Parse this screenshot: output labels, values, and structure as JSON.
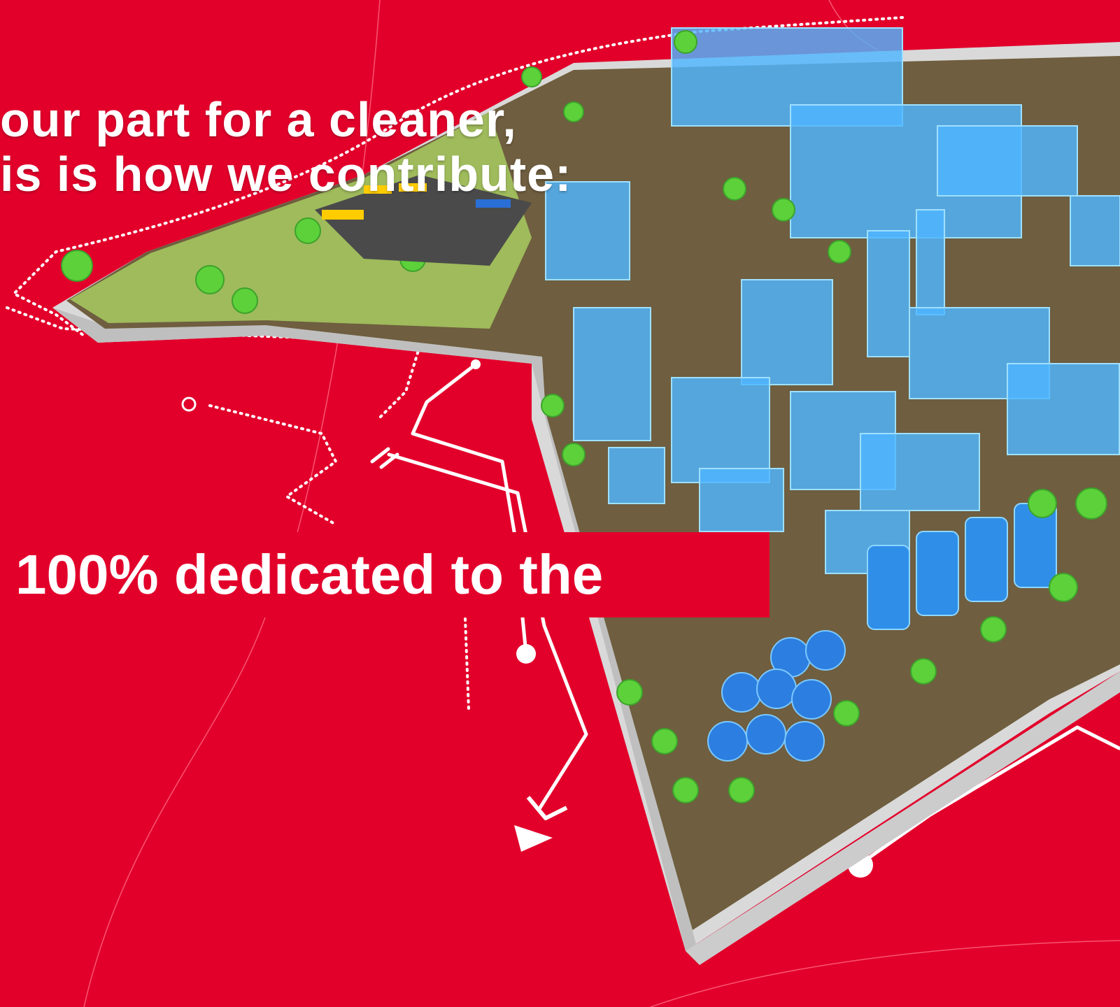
{
  "headline": {
    "line1": "our part for a cleaner,",
    "line2": "is is how we contribute:"
  },
  "banner": {
    "text": "100% dedicated to the"
  },
  "colors": {
    "background": "#e2002b",
    "text": "#ffffff",
    "glass": "#4fb6ff",
    "tree": "#5cd13a",
    "platform": "#e6e6e6"
  },
  "icons": [
    "circuit-lines",
    "arrow-down-icon",
    "arrow-head-icon",
    "node-dot-icon"
  ]
}
